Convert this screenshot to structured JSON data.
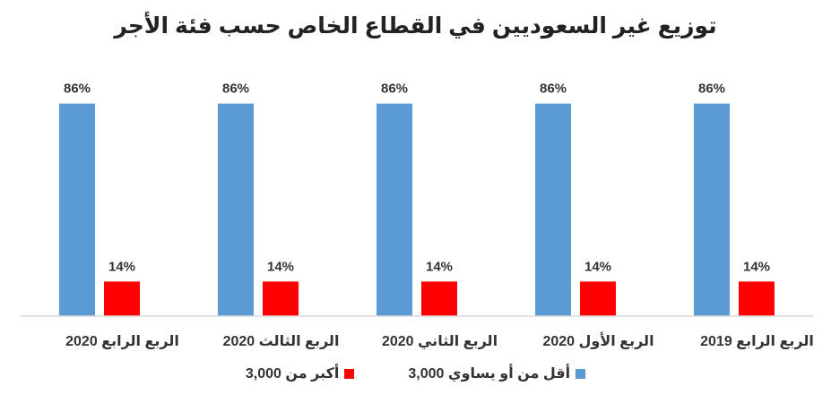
{
  "chart_data": {
    "type": "bar",
    "title": "توزيع غير السعوديين في القطاع الخاص حسب فئة الأجر",
    "categories": [
      "الربع الرابع 2019",
      "الربع الأول 2020",
      "الربع الثاني 2020",
      "الربع الثالث 2020",
      "الربع الرابع 2020"
    ],
    "series": [
      {
        "name": "أقل من أو يساوي 3,000",
        "values": [
          86,
          86,
          86,
          86,
          86
        ],
        "labels": [
          "86%",
          "86%",
          "86%",
          "86%",
          "86%"
        ],
        "color": "#5b9bd5"
      },
      {
        "name": "أكبر من 3,000",
        "values": [
          14,
          14,
          14,
          14,
          14
        ],
        "labels": [
          "14%",
          "14%",
          "14%",
          "14%",
          "14%"
        ],
        "color": "#ff0000"
      }
    ],
    "ylim": [
      0,
      100
    ],
    "grid": false,
    "legend_position": "bottom"
  }
}
